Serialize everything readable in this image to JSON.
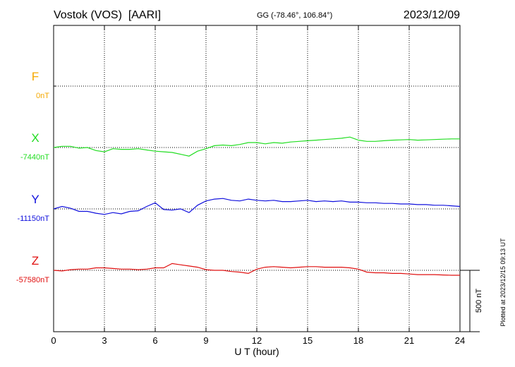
{
  "header": {
    "station": "Vostok (VOS)  [AARI]",
    "coords": "GG (-78.46°, 106.84°)",
    "date": "2023/12/09"
  },
  "footer_note": "Plotted at 2023/12/15 09:13 UT",
  "scale_label": "500 nT",
  "chart_data": {
    "type": "line",
    "xlabel": "U T (hour)",
    "xlim": [
      0,
      24
    ],
    "xticks": [
      "0",
      "3",
      "6",
      "9",
      "12",
      "15",
      "18",
      "21",
      "24"
    ],
    "scale_nT_per_panel_unit": 500,
    "grid": true,
    "series": [
      {
        "name": "F",
        "baseline_label": "0nT",
        "color": "#f5a800",
        "x": [],
        "y": []
      },
      {
        "name": "X",
        "baseline_label": "-7440nT",
        "color": "#22dd22",
        "x": [
          0,
          0.5,
          1,
          1.5,
          2,
          2.5,
          3,
          3.5,
          4,
          4.5,
          5,
          5.5,
          6,
          6.5,
          7,
          7.5,
          8,
          8.5,
          9,
          9.5,
          10,
          10.5,
          11,
          11.5,
          12,
          12.5,
          13,
          13.5,
          14,
          14.5,
          15,
          15.5,
          16,
          16.5,
          17,
          17.5,
          18,
          18.5,
          19,
          19.5,
          20,
          20.5,
          21,
          21.5,
          22,
          22.5,
          23,
          23.5,
          24
        ],
        "y": [
          -7440,
          -7430,
          -7430,
          -7445,
          -7440,
          -7465,
          -7475,
          -7450,
          -7455,
          -7455,
          -7450,
          -7460,
          -7470,
          -7475,
          -7480,
          -7495,
          -7510,
          -7470,
          -7450,
          -7425,
          -7420,
          -7425,
          -7415,
          -7400,
          -7400,
          -7410,
          -7400,
          -7405,
          -7395,
          -7390,
          -7385,
          -7380,
          -7375,
          -7370,
          -7365,
          -7355,
          -7380,
          -7390,
          -7390,
          -7385,
          -7380,
          -7378,
          -7375,
          -7380,
          -7378,
          -7375,
          -7372,
          -7370,
          -7370
        ]
      },
      {
        "name": "Y",
        "baseline_label": "-11150nT",
        "color": "#1010dd",
        "x": [
          0,
          0.5,
          1,
          1.5,
          2,
          2.5,
          3,
          3.5,
          4,
          4.5,
          5,
          5.5,
          6,
          6.5,
          7,
          7.5,
          8,
          8.5,
          9,
          9.5,
          10,
          10.5,
          11,
          11.5,
          12,
          12.5,
          13,
          13.5,
          14,
          14.5,
          15,
          15.5,
          16,
          16.5,
          17,
          17.5,
          18,
          18.5,
          19,
          19.5,
          20,
          20.5,
          21,
          21.5,
          22,
          22.5,
          23,
          23.5,
          24
        ],
        "y": [
          -11150,
          -11130,
          -11145,
          -11170,
          -11170,
          -11185,
          -11195,
          -11180,
          -11190,
          -11170,
          -11165,
          -11130,
          -11100,
          -11155,
          -11160,
          -11150,
          -11180,
          -11120,
          -11085,
          -11070,
          -11065,
          -11080,
          -11085,
          -11070,
          -11080,
          -11085,
          -11080,
          -11090,
          -11090,
          -11085,
          -11080,
          -11090,
          -11085,
          -11090,
          -11085,
          -11095,
          -11095,
          -11100,
          -11100,
          -11105,
          -11105,
          -11110,
          -11110,
          -11115,
          -11115,
          -11120,
          -11120,
          -11125,
          -11130
        ]
      },
      {
        "name": "Z",
        "baseline_label": "-57580nT",
        "color": "#e01010",
        "x": [
          0,
          0.5,
          1,
          1.5,
          2,
          2.5,
          3,
          3.5,
          4,
          4.5,
          5,
          5.5,
          6,
          6.5,
          7,
          7.5,
          8,
          8.5,
          9,
          9.5,
          10,
          10.5,
          11,
          11.5,
          12,
          12.5,
          13,
          13.5,
          14,
          14.5,
          15,
          15.5,
          16,
          16.5,
          17,
          17.5,
          18,
          18.5,
          19,
          19.5,
          20,
          20.5,
          21,
          21.5,
          22,
          22.5,
          23,
          23.5,
          24
        ],
        "y": [
          -57580,
          -57585,
          -57575,
          -57570,
          -57570,
          -57560,
          -57560,
          -57565,
          -57570,
          -57570,
          -57575,
          -57570,
          -57560,
          -57560,
          -57525,
          -57535,
          -57545,
          -57555,
          -57575,
          -57580,
          -57580,
          -57590,
          -57595,
          -57605,
          -57570,
          -57555,
          -57550,
          -57555,
          -57560,
          -57555,
          -57550,
          -57550,
          -57555,
          -57555,
          -57555,
          -57560,
          -57570,
          -57595,
          -57600,
          -57600,
          -57605,
          -57605,
          -57610,
          -57615,
          -57615,
          -57615,
          -57618,
          -57620,
          -57620
        ]
      }
    ]
  }
}
